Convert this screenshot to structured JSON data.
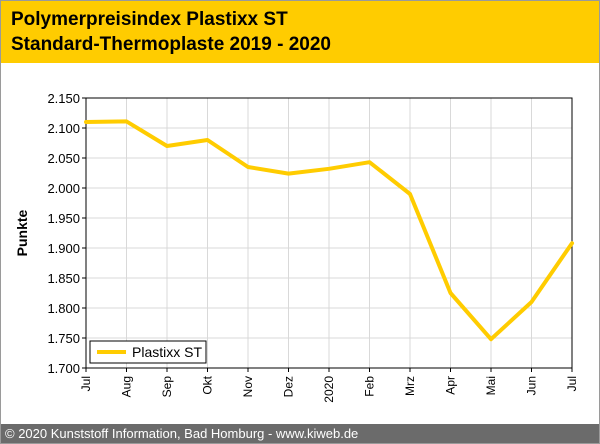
{
  "header": {
    "title_line1": "Polymerpreisindex Plastixx ST",
    "title_line2": "Standard-Thermoplaste 2019 - 2020"
  },
  "footer": {
    "text": "© 2020 Kunststoff Information, Bad Homburg - www.kiweb.de"
  },
  "colors": {
    "header_bg": "#ffcc00",
    "series": "#ffcc00",
    "footer_bg": "#6b6b6b",
    "grid": "#d9d9d9"
  },
  "chart_data": {
    "type": "line",
    "title": "",
    "xlabel": "",
    "ylabel": "Punkte",
    "categories": [
      "Jul",
      "Aug",
      "Sep",
      "Okt",
      "Nov",
      "Dez",
      "2020",
      "Feb",
      "Mrz",
      "Apr",
      "Mai",
      "Jun",
      "Jul"
    ],
    "series": [
      {
        "name": "Plastixx ST",
        "values": [
          2.11,
          2.111,
          2.07,
          2.08,
          2.035,
          2.024,
          2.032,
          2.043,
          1.99,
          1.825,
          1.748,
          1.81,
          1.908
        ]
      }
    ],
    "ylim": [
      1.7,
      2.15
    ],
    "yticks": [
      "1.700",
      "1.750",
      "1.800",
      "1.850",
      "1.900",
      "1.950",
      "2.000",
      "2.050",
      "2.100",
      "2.150"
    ],
    "grid": true,
    "legend_position": "bottom-left"
  }
}
